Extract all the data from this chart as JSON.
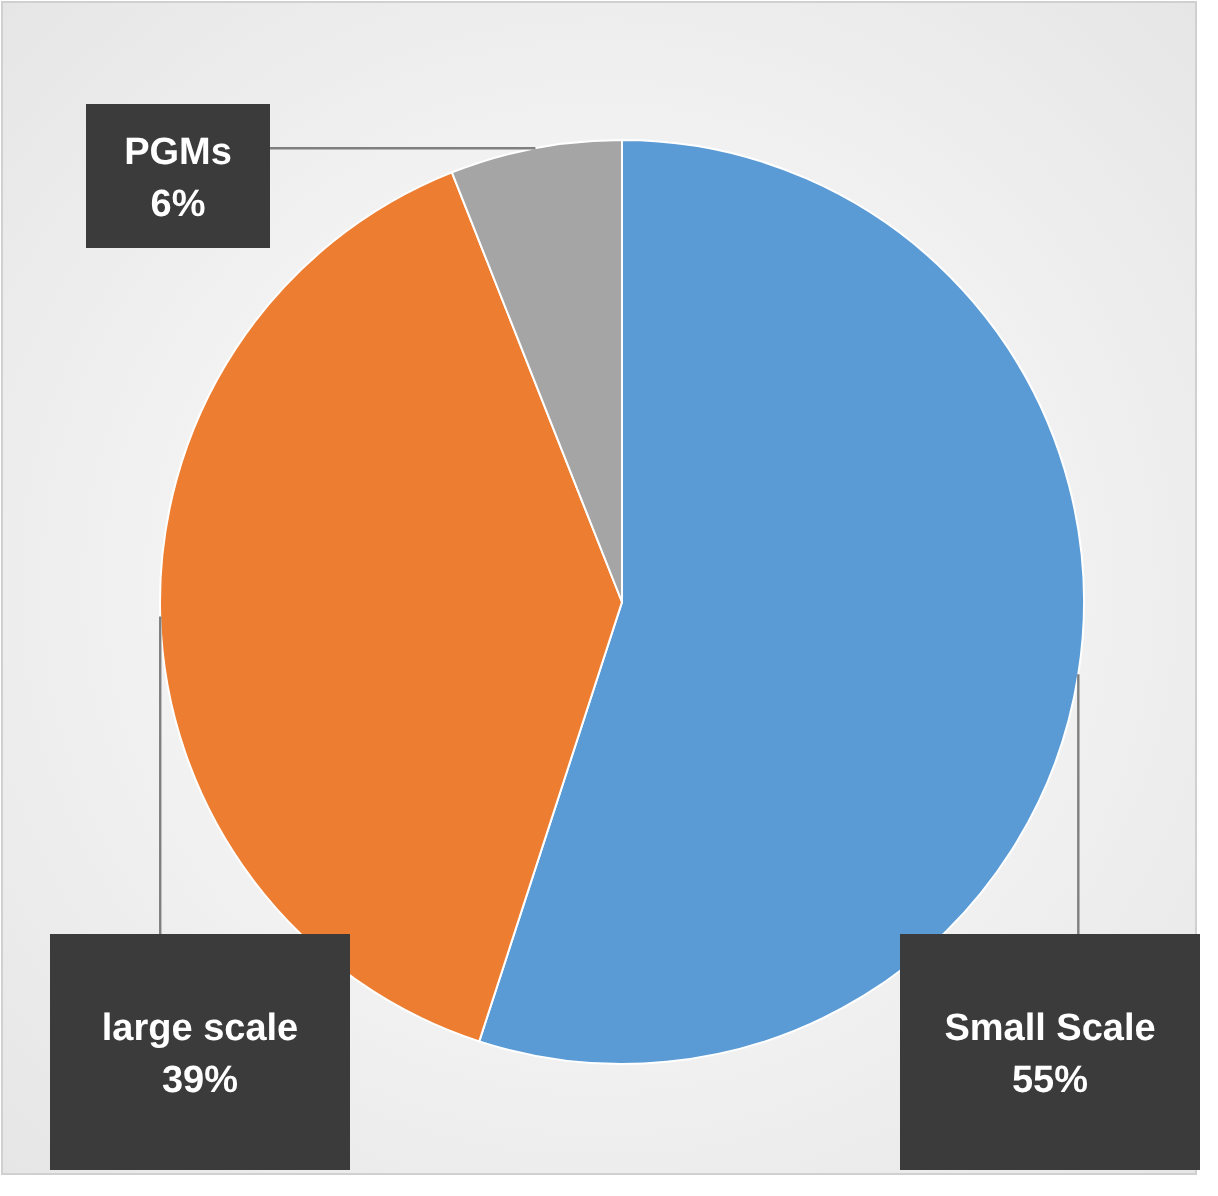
{
  "chart_data": {
    "type": "pie",
    "categories": [
      "Small Scale",
      "large scale",
      "PGMs"
    ],
    "values": [
      55,
      39,
      6
    ],
    "colors": [
      "#5b9bd5",
      "#ed7d31",
      "#a5a5a5"
    ],
    "value_labels": [
      "55%",
      "39%",
      "6%"
    ]
  }
}
